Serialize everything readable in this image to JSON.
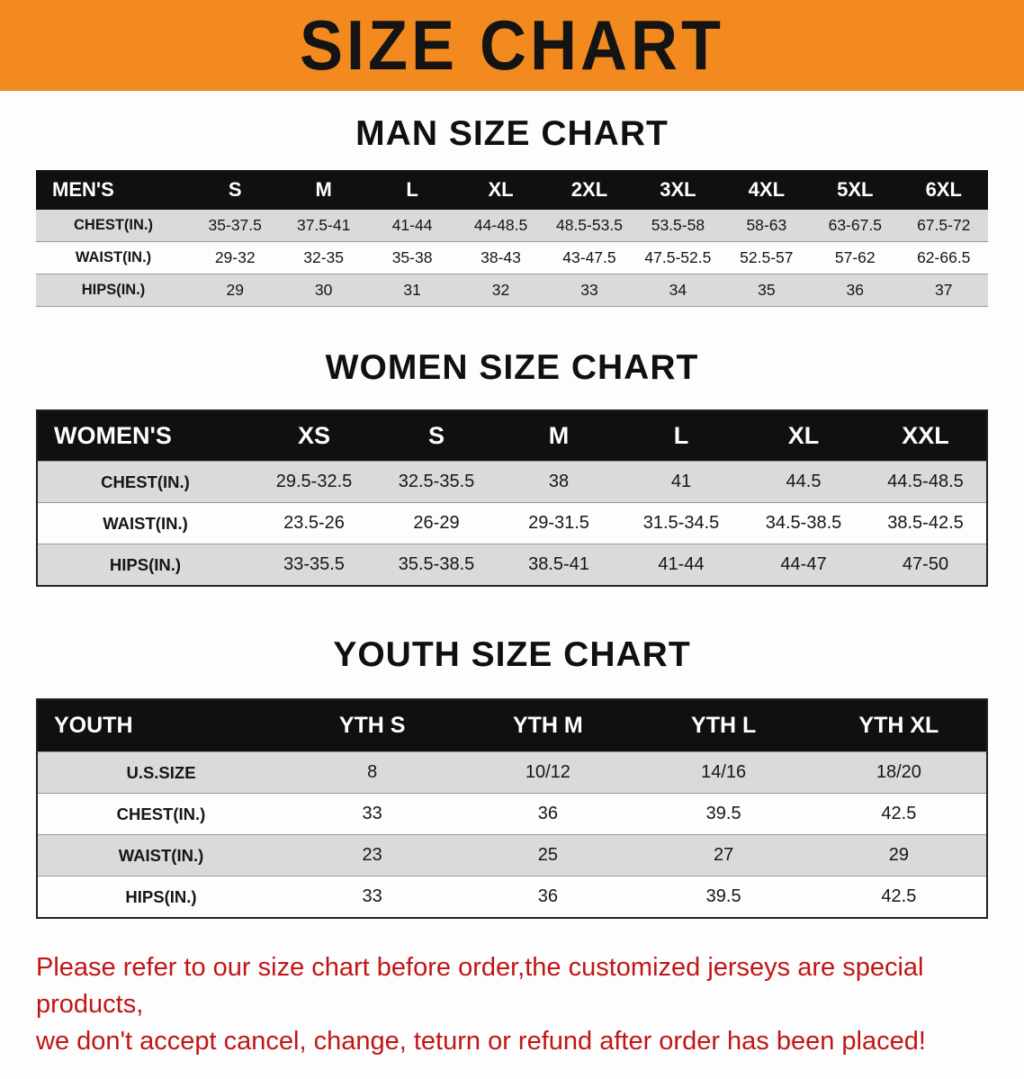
{
  "banner": {
    "title": "SIZE CHART",
    "bg_color": "#F28A1F"
  },
  "sections": {
    "men": {
      "heading": "MAN SIZE CHART",
      "table": {
        "header": [
          "MEN'S",
          "S",
          "M",
          "L",
          "XL",
          "2XL",
          "3XL",
          "4XL",
          "5XL",
          "6XL"
        ],
        "rows": [
          [
            "CHEST(IN.)",
            "35-37.5",
            "37.5-41",
            "41-44",
            "44-48.5",
            "48.5-53.5",
            "53.5-58",
            "58-63",
            "63-67.5",
            "67.5-72"
          ],
          [
            "WAIST(IN.)",
            "29-32",
            "32-35",
            "35-38",
            "38-43",
            "43-47.5",
            "47.5-52.5",
            "52.5-57",
            "57-62",
            "62-66.5"
          ],
          [
            "HIPS(IN.)",
            "29",
            "30",
            "31",
            "32",
            "33",
            "34",
            "35",
            "36",
            "37"
          ]
        ]
      }
    },
    "women": {
      "heading": "WOMEN SIZE CHART",
      "table": {
        "header": [
          "WOMEN'S",
          "XS",
          "S",
          "M",
          "L",
          "XL",
          "XXL"
        ],
        "rows": [
          [
            "CHEST(IN.)",
            "29.5-32.5",
            "32.5-35.5",
            "38",
            "41",
            "44.5",
            "44.5-48.5"
          ],
          [
            "WAIST(IN.)",
            "23.5-26",
            "26-29",
            "29-31.5",
            "31.5-34.5",
            "34.5-38.5",
            "38.5-42.5"
          ],
          [
            "HIPS(IN.)",
            "33-35.5",
            "35.5-38.5",
            "38.5-41",
            "41-44",
            "44-47",
            "47-50"
          ]
        ]
      }
    },
    "youth": {
      "heading": "YOUTH SIZE CHART",
      "table": {
        "header": [
          "YOUTH",
          "YTH S",
          "YTH M",
          "YTH L",
          "YTH XL"
        ],
        "rows": [
          [
            "U.S.SIZE",
            "8",
            "10/12",
            "14/16",
            "18/20"
          ],
          [
            "CHEST(IN.)",
            "33",
            "36",
            "39.5",
            "42.5"
          ],
          [
            "WAIST(IN.)",
            "23",
            "25",
            "27",
            "29"
          ],
          [
            "HIPS(IN.)",
            "33",
            "36",
            "39.5",
            "42.5"
          ]
        ]
      }
    }
  },
  "footer": {
    "line1": "Please refer to our size chart before order,the customized jerseys are special products,",
    "line2": "we don't accept cancel, change, teturn or refund after order has been placed!",
    "text_color": "#C21616"
  }
}
